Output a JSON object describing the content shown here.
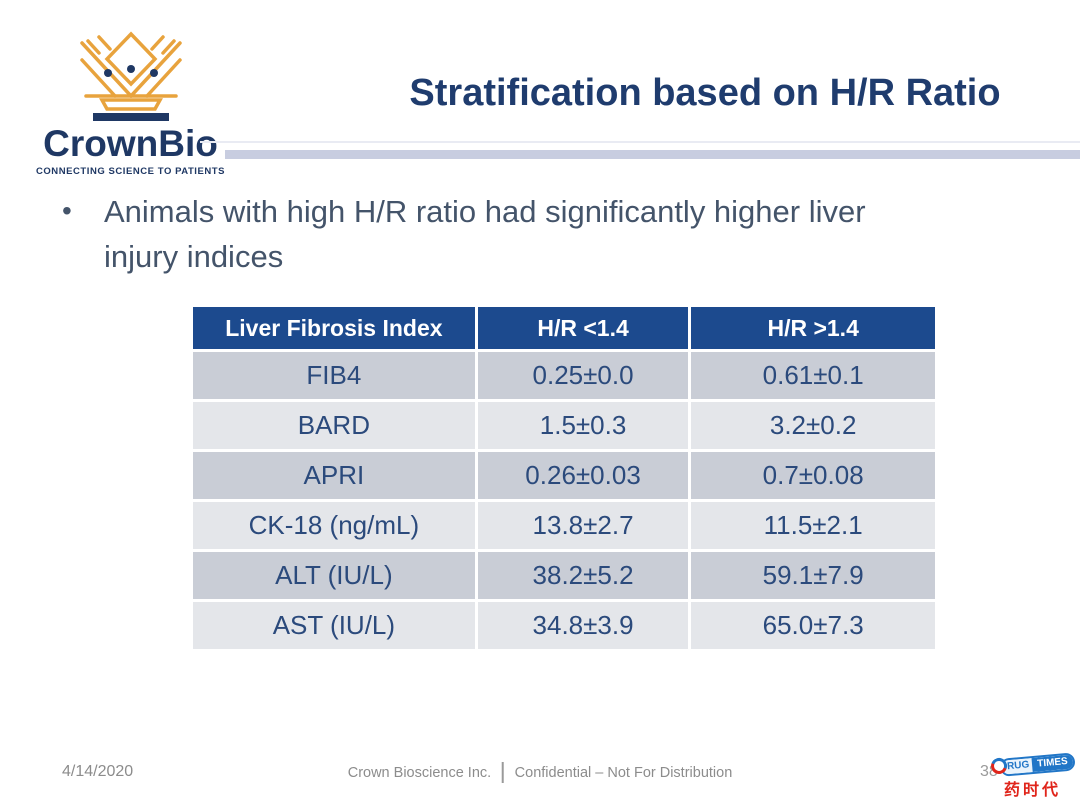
{
  "colors": {
    "navy": "#1F3864",
    "gold": "#E8A33D",
    "title_text": "#1F3C6E",
    "body_text": "#44546A",
    "table_header_bg": "#1C4A8E",
    "table_row_dark": "#C9CDD6",
    "table_row_light": "#E4E6EA",
    "table_cell_text": "#2B4A7C",
    "title_rule": "#C8CDE0",
    "footer_text": "#8C8C8C",
    "drugtimes_blue": "#2176C7",
    "drugtimes_red": "#E0251B"
  },
  "logo": {
    "brand": "CrownBio",
    "tagline": "CONNECTING SCIENCE TO PATIENTS",
    "crown_icon": "crown-icon"
  },
  "header": {
    "title": "Stratification based on H/R Ratio"
  },
  "bullet": {
    "marker": "•",
    "text": "Animals with high H/R ratio had significantly higher liver injury indices",
    "lines": [
      "Animals with high H/R ratio had significantly higher liver",
      "injury indices"
    ]
  },
  "table": {
    "headers": [
      "Liver Fibrosis Index",
      "H/R <1.4",
      "H/R >1.4"
    ],
    "rows": [
      [
        "FIB4",
        "0.25±0.0",
        "0.61±0.1"
      ],
      [
        "BARD",
        "1.5±0.3",
        "3.2±0.2"
      ],
      [
        "APRI",
        "0.26±0.03",
        "0.7±0.08"
      ],
      [
        "CK-18 (ng/mL)",
        "13.8±2.7",
        "11.5±2.1"
      ],
      [
        "ALT (IU/L)",
        "38.2±5.2",
        "59.1±7.9"
      ],
      [
        "AST (IU/L)",
        "34.8±3.9",
        "65.0±7.3"
      ]
    ]
  },
  "footer": {
    "date": "4/14/2020",
    "company": "Crown Bioscience Inc.",
    "confidential": "Confidential – Not For Distribution",
    "page_number": "38"
  },
  "watermark": {
    "capsule_left": "RUG",
    "capsule_right": "TIMES",
    "chinese": "药时代"
  }
}
